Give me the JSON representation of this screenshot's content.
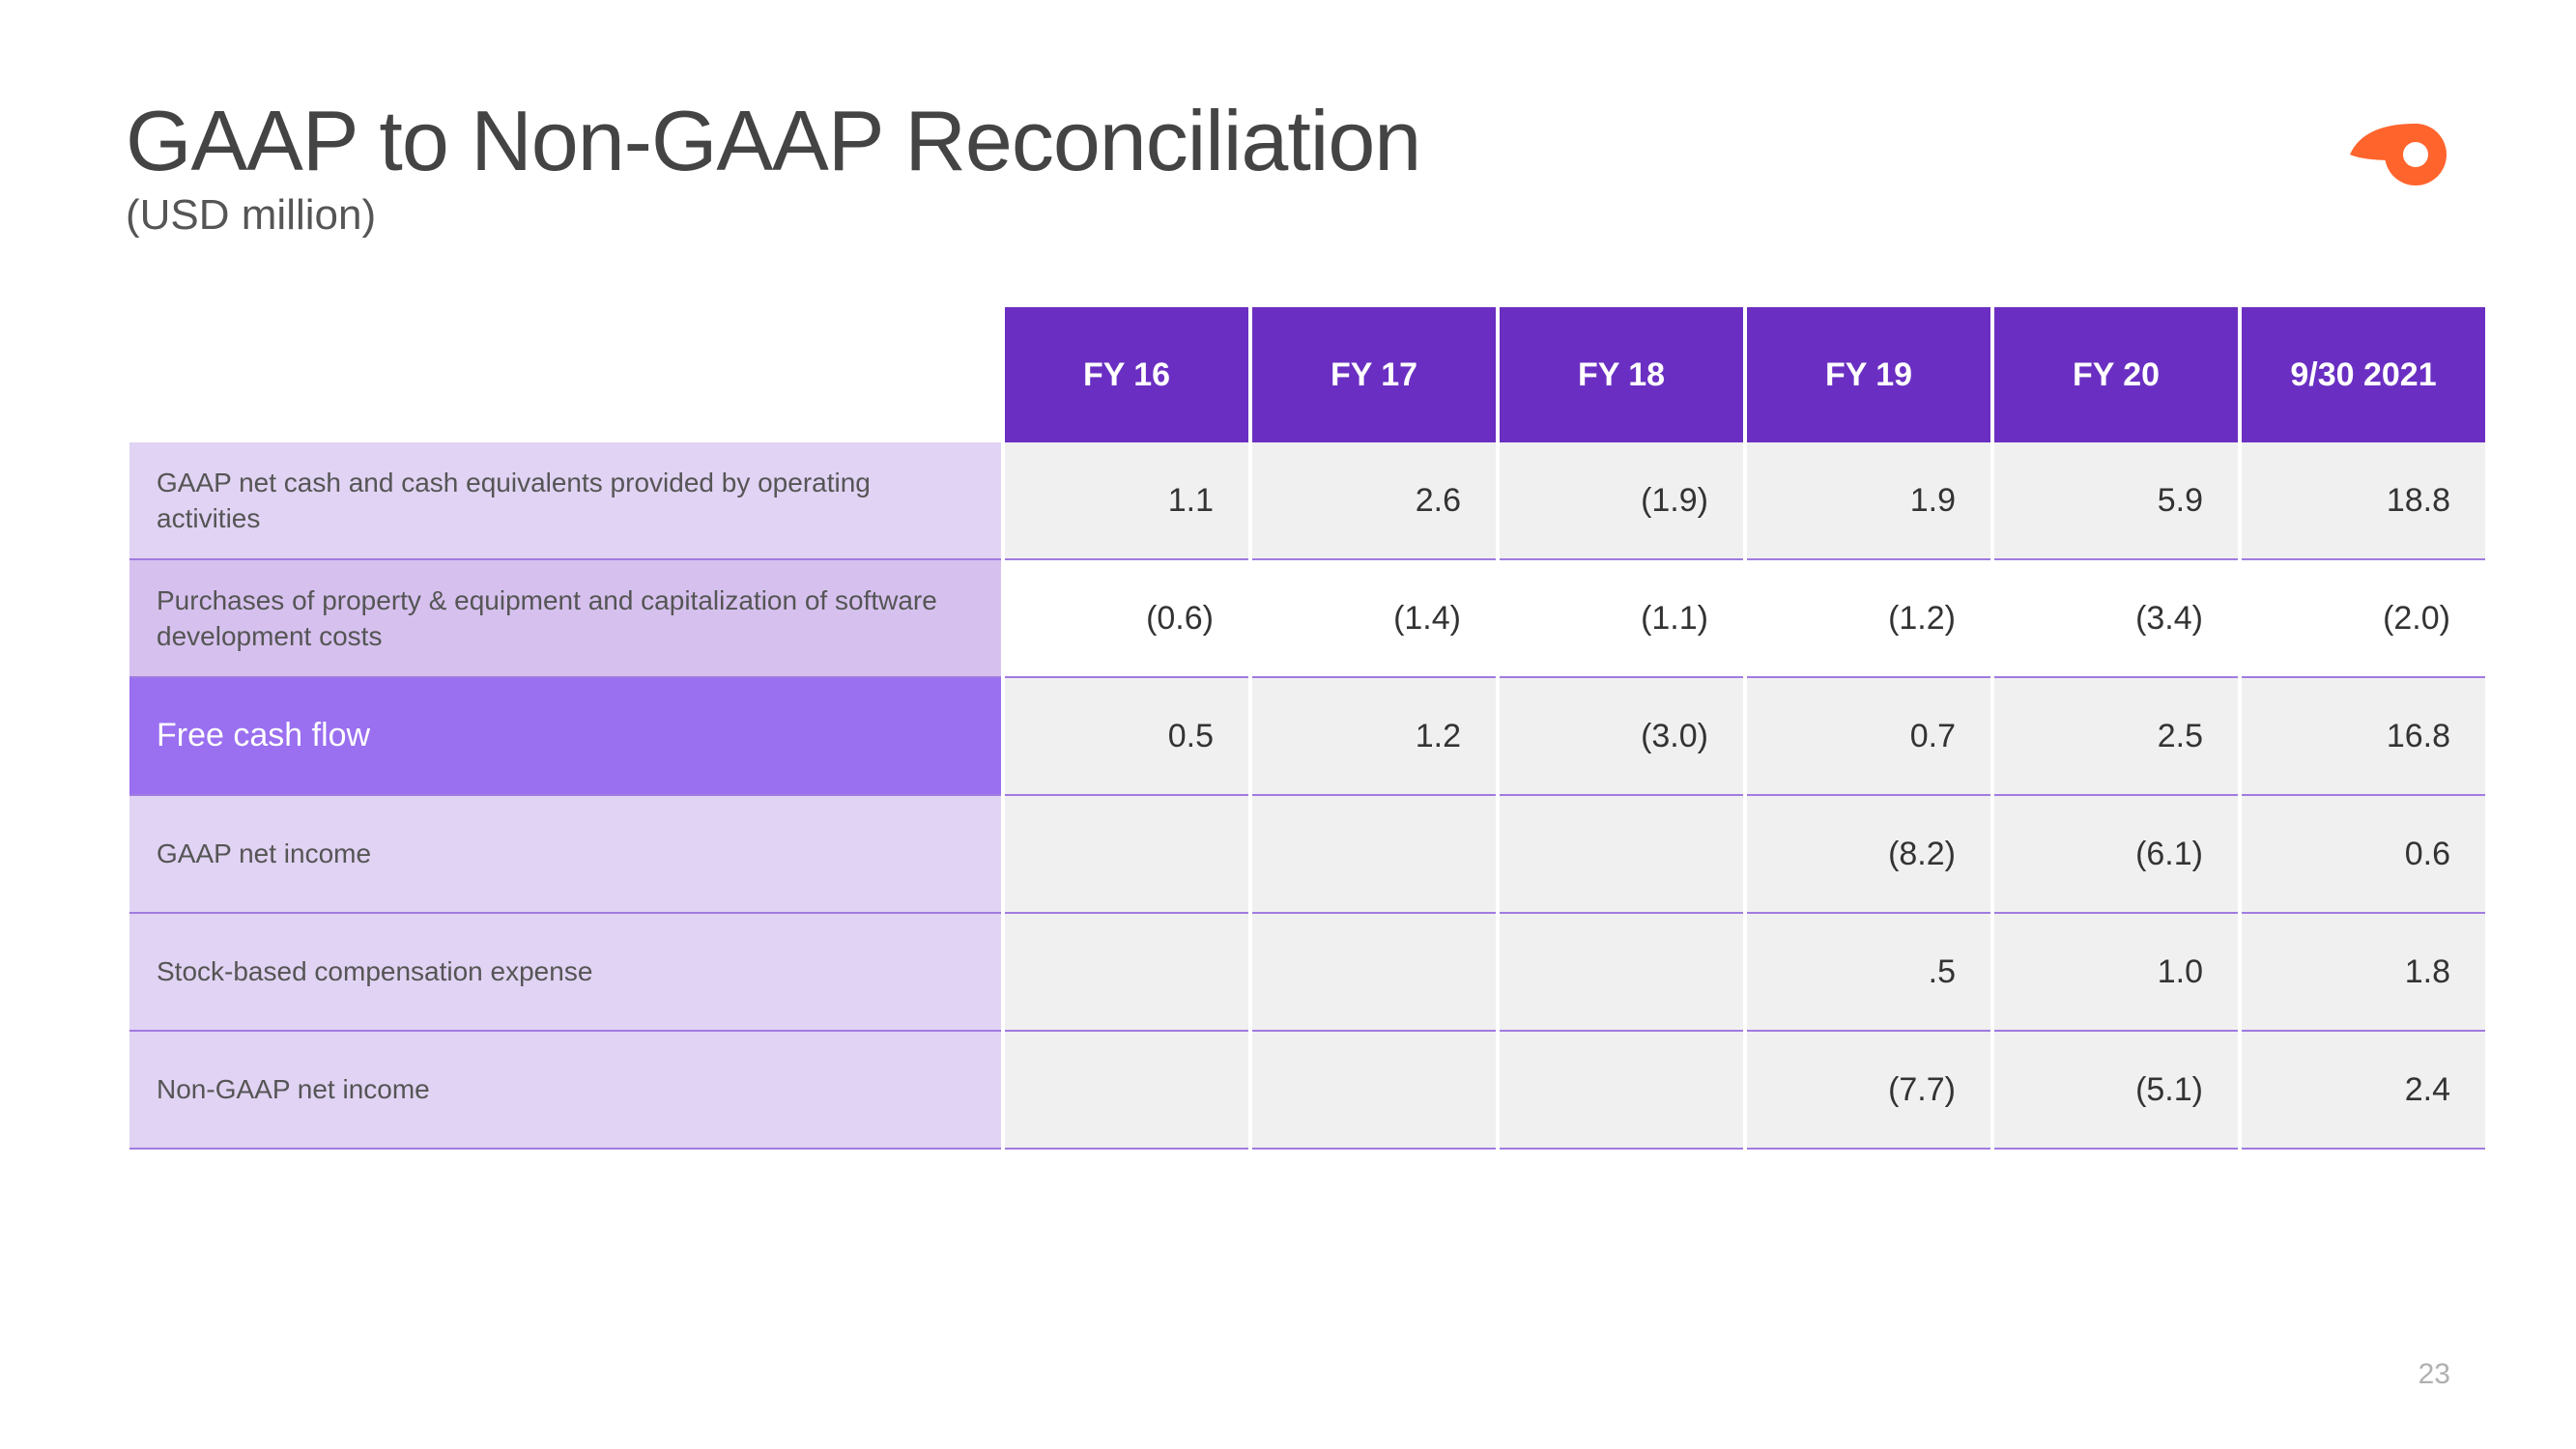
{
  "title": "GAAP to Non-GAAP Reconciliation",
  "subtitle": "(USD million)",
  "page_number": "23",
  "logo_color": "#ff642d",
  "header_bg": "#6a2fc2",
  "highlight_bg": "#9a6ff0",
  "label_bg_light": "#e1d3f3",
  "label_bg_medium": "#d6c1ee",
  "cell_bg_shaded": "#f0f0f0",
  "row_border": "#a07be0",
  "periods": [
    "FY 16",
    "FY 17",
    "FY 18",
    "FY 19",
    "FY 20",
    "9/30 2021"
  ],
  "rows": [
    {
      "label": "GAAP net cash and cash equivalents provided by operating activities",
      "label_style": "light",
      "cell_style": "shaded",
      "values": [
        "1.1",
        "2.6",
        "(1.9)",
        "1.9",
        "5.9",
        "18.8"
      ]
    },
    {
      "label": "Purchases of property & equipment and capitalization of software development costs",
      "label_style": "medium",
      "cell_style": "plain",
      "values": [
        "(0.6)",
        "(1.4)",
        "(1.1)",
        "(1.2)",
        "(3.4)",
        "(2.0)"
      ]
    },
    {
      "label": "Free cash flow",
      "label_style": "strong",
      "cell_style": "shaded",
      "values": [
        "0.5",
        "1.2",
        "(3.0)",
        "0.7",
        "2.5",
        "16.8"
      ]
    },
    {
      "label": "GAAP net income",
      "label_style": "light",
      "cell_style": "shaded",
      "values": [
        "",
        "",
        "",
        "(8.2)",
        "(6.1)",
        "0.6"
      ]
    },
    {
      "label": "Stock-based compensation expense",
      "label_style": "light",
      "cell_style": "shaded",
      "values": [
        "",
        "",
        "",
        ".5",
        "1.0",
        "1.8"
      ]
    },
    {
      "label": "Non-GAAP net income",
      "label_style": "light",
      "cell_style": "shaded",
      "values": [
        "",
        "",
        "",
        "(7.7)",
        "(5.1)",
        "2.4"
      ]
    }
  ]
}
